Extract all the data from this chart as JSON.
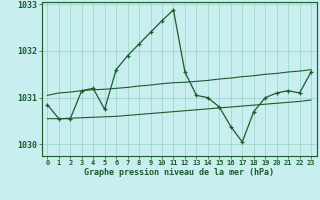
{
  "title": "Graphe pression niveau de la mer (hPa)",
  "background_color": "#c8eef0",
  "grid_color": "#98d4c8",
  "line_color": "#1a5c2a",
  "x_labels": [
    "0",
    "1",
    "2",
    "3",
    "4",
    "5",
    "6",
    "7",
    "8",
    "9",
    "10",
    "11",
    "12",
    "13",
    "14",
    "15",
    "16",
    "17",
    "18",
    "19",
    "20",
    "21",
    "22",
    "23"
  ],
  "ylim": [
    1029.75,
    1033.05
  ],
  "yticks": [
    1030,
    1031,
    1032,
    1033
  ],
  "series1": [
    1030.85,
    1030.55,
    1030.55,
    1031.15,
    1031.2,
    1030.75,
    1031.6,
    1031.9,
    1032.15,
    1032.4,
    1032.65,
    1032.88,
    1031.55,
    1031.05,
    1031.0,
    1030.8,
    1030.38,
    1030.05,
    1030.7,
    1031.0,
    1031.1,
    1031.15,
    1031.1,
    1031.55
  ],
  "series2_x": [
    0,
    1,
    2,
    3,
    4,
    5,
    6,
    7,
    8,
    9,
    10,
    11,
    12,
    13,
    14,
    15,
    16,
    17,
    18,
    19,
    20,
    21,
    22,
    23
  ],
  "series2": [
    1031.05,
    1031.1,
    1031.12,
    1031.15,
    1031.17,
    1031.18,
    1031.2,
    1031.22,
    1031.25,
    1031.27,
    1031.3,
    1031.32,
    1031.33,
    1031.35,
    1031.37,
    1031.4,
    1031.42,
    1031.45,
    1031.47,
    1031.5,
    1031.52,
    1031.55,
    1031.57,
    1031.6
  ],
  "series3": [
    1030.55,
    1030.55,
    1030.56,
    1030.57,
    1030.58,
    1030.59,
    1030.6,
    1030.62,
    1030.64,
    1030.66,
    1030.68,
    1030.7,
    1030.72,
    1030.74,
    1030.76,
    1030.78,
    1030.8,
    1030.82,
    1030.84,
    1030.86,
    1030.88,
    1030.9,
    1030.92,
    1030.95
  ],
  "figsize": [
    3.2,
    2.0
  ],
  "dpi": 100
}
